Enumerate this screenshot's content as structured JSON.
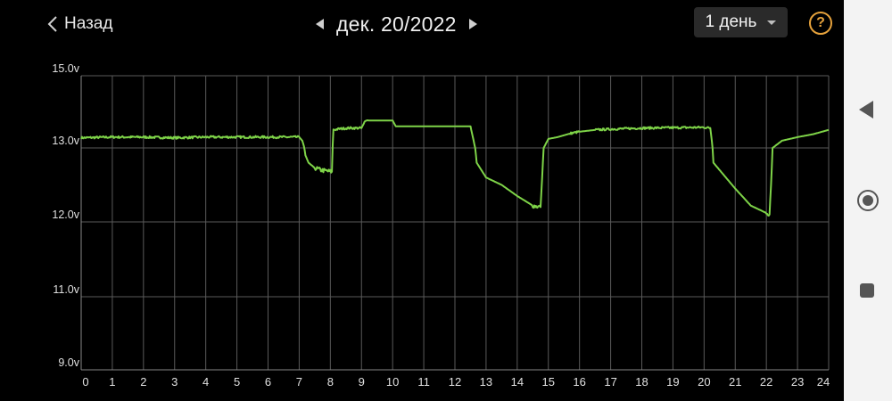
{
  "header": {
    "back_label": "Назад",
    "date_label": "дек. 20/2022",
    "period_label": "1 день",
    "help_symbol": "?"
  },
  "colors": {
    "background": "#000000",
    "grid": "#5a5a5a",
    "line": "#7ed348",
    "accent": "#e6a23c"
  },
  "icons": {
    "back": "chevron-left-icon",
    "prev": "triangle-left-icon",
    "next": "triangle-right-icon",
    "dropdown": "caret-down-icon",
    "help": "help-circle-icon",
    "nav_back": "nav-back-icon",
    "nav_home": "nav-home-icon",
    "nav_recent": "nav-recent-icon"
  },
  "chart_data": {
    "type": "line",
    "title": "",
    "xlabel": "",
    "ylabel": "",
    "xlim": [
      0,
      24
    ],
    "ylim": [
      9,
      15
    ],
    "grid": true,
    "x_ticks": [
      "0",
      "1",
      "2",
      "3",
      "4",
      "5",
      "6",
      "7",
      "8",
      "9",
      "10",
      "11",
      "12",
      "13",
      "14",
      "15",
      "16",
      "17",
      "18",
      "19",
      "20",
      "21",
      "22",
      "23",
      "24"
    ],
    "y_ticks": [
      {
        "value": 9,
        "label": "9.0v"
      },
      {
        "value": 11,
        "label": "11.0v"
      },
      {
        "value": 12,
        "label": "12.0v"
      },
      {
        "value": 13,
        "label": "13.0v"
      },
      {
        "value": 15,
        "label": "15.0v"
      }
    ],
    "series": [
      {
        "x": [
          0,
          1,
          2,
          3,
          4,
          5,
          6,
          7,
          7.1,
          7.2,
          7.3,
          7.5,
          7.7,
          8,
          8.05,
          8.1,
          8.3,
          8.6,
          9.0,
          9.1,
          9.2,
          9.5,
          10.0,
          10.1,
          10.2,
          11.0,
          12.0,
          12.5,
          12.6,
          12.7,
          13.0,
          13.5,
          14.0,
          14.5,
          14.75,
          14.8,
          14.85,
          15.0,
          15.3,
          15.7,
          16.0,
          16.5,
          17,
          18,
          19,
          20,
          20.2,
          20.3,
          20.5,
          21.0,
          21.5,
          22.0,
          22.1,
          22.15,
          22.2,
          22.5,
          23.0,
          23.5,
          24
        ],
        "y": [
          13.28,
          13.3,
          13.3,
          13.28,
          13.3,
          13.3,
          13.3,
          13.3,
          13.2,
          12.9,
          12.8,
          12.73,
          12.7,
          12.68,
          12.68,
          13.5,
          13.53,
          13.55,
          13.55,
          13.72,
          13.76,
          13.76,
          13.76,
          13.6,
          13.6,
          13.6,
          13.6,
          13.6,
          13.2,
          12.8,
          12.6,
          12.5,
          12.35,
          12.22,
          12.2,
          12.6,
          13.0,
          13.25,
          13.3,
          13.4,
          13.45,
          13.5,
          13.52,
          13.55,
          13.56,
          13.57,
          13.55,
          12.8,
          12.7,
          12.45,
          12.22,
          12.12,
          12.1,
          12.5,
          13.0,
          13.2,
          13.3,
          13.38,
          13.5
        ]
      }
    ]
  }
}
